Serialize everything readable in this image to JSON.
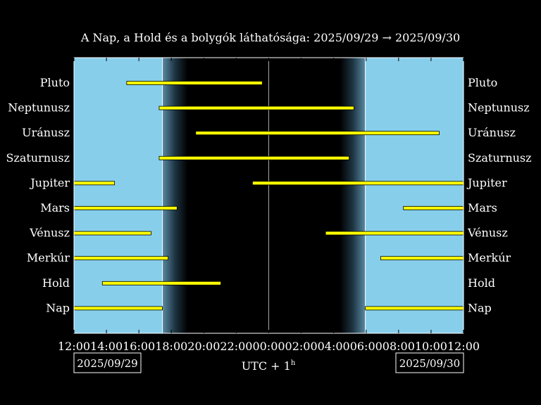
{
  "chart_data": {
    "type": "timeline",
    "title": "A Nap, a Hold és a bolygók láthatósága: 2025/09/29 → 2025/09/30",
    "x_axis": {
      "unit": "hours since 2025/09/29 12:00 (UTC+1)",
      "range": [
        0,
        24
      ],
      "tick_labels": [
        "12:00",
        "14:00",
        "16:00",
        "18:00",
        "20:00",
        "22:00",
        "00:00",
        "02:00",
        "04:00",
        "06:00",
        "08:00",
        "10:00",
        "12:00"
      ],
      "label": "UTC + 1",
      "label_superscript": "h",
      "start_date": "2025/09/29",
      "end_date": "2025/09/30"
    },
    "colors": {
      "day": "#87ceeb",
      "night": "#000000",
      "bar": "#ffff00",
      "midnight_line": "#aaaaaa"
    },
    "twilight": {
      "sunset": 5.45,
      "dusk_end": 7.0,
      "dawn_start": 16.4,
      "sunrise": 17.95
    },
    "series": [
      {
        "name": "Pluto",
        "segments": [
          [
            3.25,
            11.6
          ]
        ]
      },
      {
        "name": "Neptunusz",
        "segments": [
          [
            5.25,
            17.25
          ]
        ]
      },
      {
        "name": "Uránusz",
        "segments": [
          [
            7.5,
            22.5
          ]
        ]
      },
      {
        "name": "Szaturnusz",
        "segments": [
          [
            5.25,
            16.95
          ]
        ]
      },
      {
        "name": "Jupiter",
        "segments": [
          [
            0,
            2.5
          ],
          [
            11.0,
            24
          ]
        ]
      },
      {
        "name": "Mars",
        "segments": [
          [
            0,
            6.35
          ],
          [
            20.3,
            24
          ]
        ]
      },
      {
        "name": "Vénusz",
        "segments": [
          [
            0,
            4.75
          ],
          [
            15.5,
            24
          ]
        ]
      },
      {
        "name": "Merkúr",
        "segments": [
          [
            0,
            5.8
          ],
          [
            18.9,
            24
          ]
        ]
      },
      {
        "name": "Hold",
        "segments": [
          [
            1.75,
            9.05
          ]
        ]
      },
      {
        "name": "Nap",
        "segments": [
          [
            0,
            5.45
          ],
          [
            17.95,
            24
          ]
        ]
      }
    ]
  }
}
